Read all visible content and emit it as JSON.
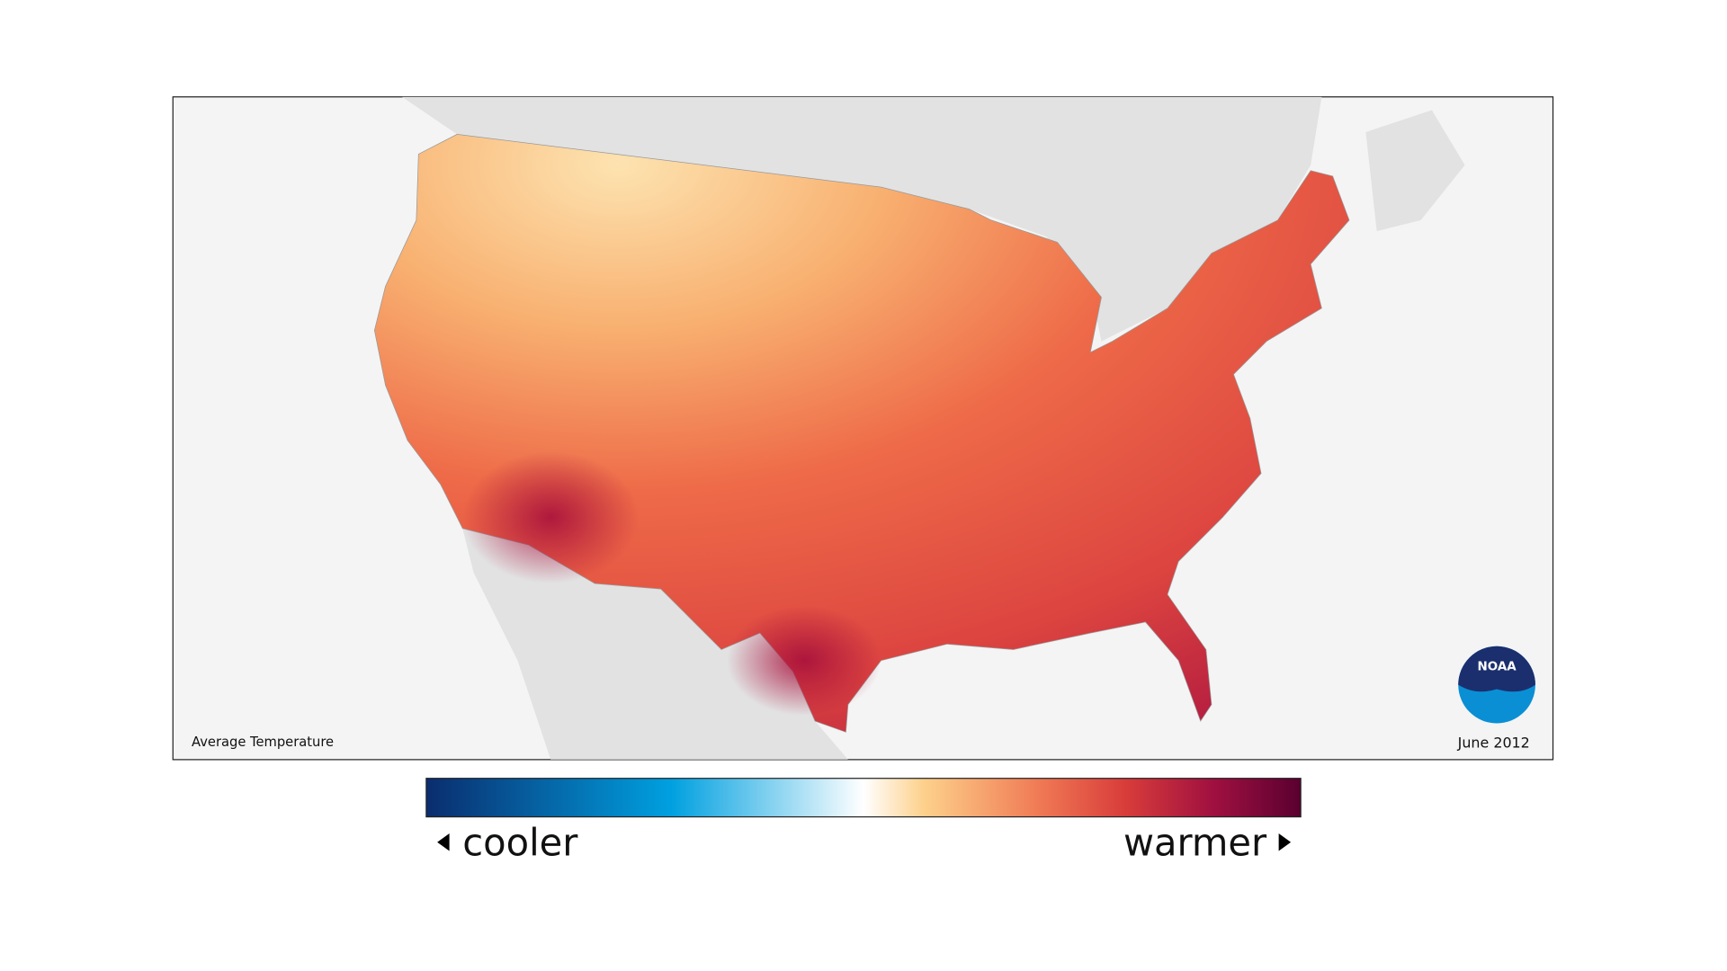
{
  "map": {
    "caption": "Average Temperature",
    "date": "June 2012"
  },
  "legend": {
    "low_label": "cooler",
    "high_label": "warmer"
  },
  "logo": {
    "text": "NOAA"
  }
}
